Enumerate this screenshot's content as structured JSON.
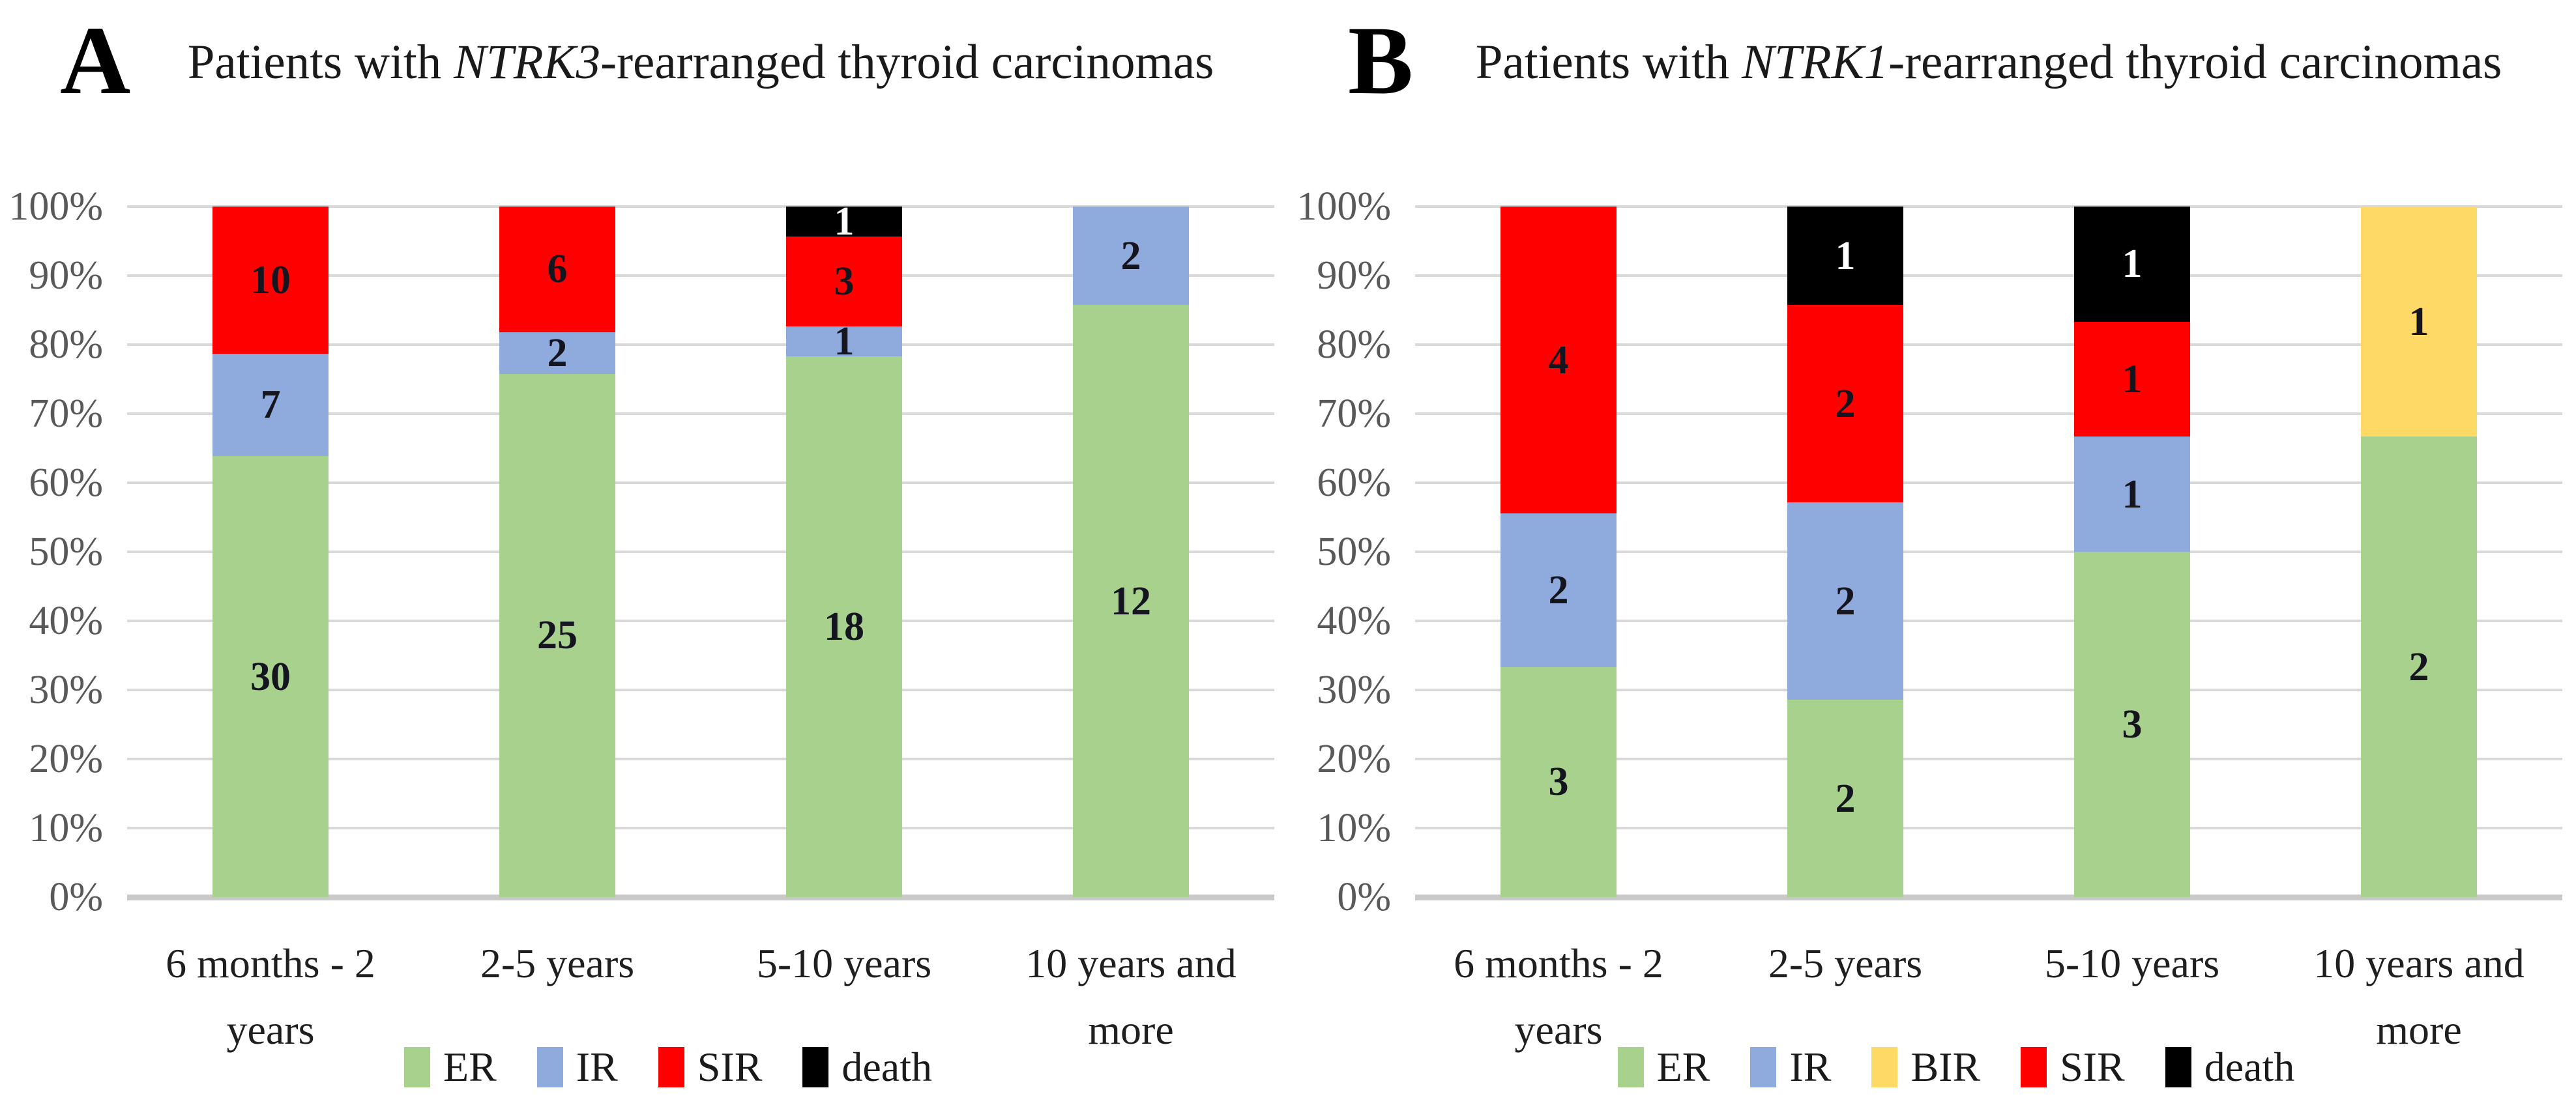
{
  "figure": {
    "panels": [
      {
        "letter": "A"
      },
      {
        "letter": "B"
      }
    ]
  },
  "colors": {
    "ER": "#a9d18e",
    "IR": "#8faadc",
    "BIR": "#ffd966",
    "SIR": "#ff0000",
    "death": "#000000",
    "gridline": "#d9d9d9",
    "axis_baseline": "#c9c9c9",
    "y_tick_label": "#595959",
    "category_label": "#1f1f1f",
    "data_label": "#15151f",
    "data_label_on_dark": "#ffffff"
  },
  "chart_data": [
    {
      "type": "bar",
      "stacked": true,
      "percent_stacked": true,
      "title": "Patients with NTRK3-rearranged thyroid carcinomas",
      "title_parts": [
        {
          "text": "Patients with ",
          "italic": false
        },
        {
          "text": "NTRK3",
          "italic": true
        },
        {
          "text": "-rearranged thyroid carcinomas",
          "italic": false
        }
      ],
      "categories": [
        "6 months - 2 years",
        "2-5 years",
        "5-10 years",
        "10 years and more"
      ],
      "series": [
        {
          "name": "ER",
          "color": "#a9d18e",
          "values": [
            30,
            25,
            18,
            12
          ]
        },
        {
          "name": "IR",
          "color": "#8faadc",
          "values": [
            7,
            2,
            1,
            2
          ]
        },
        {
          "name": "SIR",
          "color": "#ff0000",
          "values": [
            10,
            6,
            3,
            0
          ]
        },
        {
          "name": "death",
          "color": "#000000",
          "values": [
            0,
            0,
            1,
            0
          ]
        }
      ],
      "xlabel": "",
      "ylabel": "",
      "ylim": [
        0,
        100
      ],
      "y_ticks": [
        "0%",
        "10%",
        "20%",
        "30%",
        "40%",
        "50%",
        "60%",
        "70%",
        "80%",
        "90%",
        "100%"
      ],
      "grid": true,
      "legend_position": "bottom",
      "legend": [
        "ER",
        "IR",
        "SIR",
        "death"
      ]
    },
    {
      "type": "bar",
      "stacked": true,
      "percent_stacked": true,
      "title": "Patients with NTRK1-rearranged thyroid carcinomas",
      "title_parts": [
        {
          "text": "Patients with ",
          "italic": false
        },
        {
          "text": "NTRK1",
          "italic": true
        },
        {
          "text": "-rearranged thyroid carcinomas",
          "italic": false
        }
      ],
      "categories": [
        "6 months - 2 years",
        "2-5 years",
        "5-10 years",
        "10 years and more"
      ],
      "series": [
        {
          "name": "ER",
          "color": "#a9d18e",
          "values": [
            3,
            2,
            3,
            2
          ]
        },
        {
          "name": "IR",
          "color": "#8faadc",
          "values": [
            2,
            2,
            1,
            0
          ]
        },
        {
          "name": "BIR",
          "color": "#ffd966",
          "values": [
            0,
            0,
            0,
            1
          ]
        },
        {
          "name": "SIR",
          "color": "#ff0000",
          "values": [
            4,
            2,
            1,
            0
          ]
        },
        {
          "name": "death",
          "color": "#000000",
          "values": [
            0,
            1,
            1,
            0
          ]
        }
      ],
      "xlabel": "",
      "ylabel": "",
      "ylim": [
        0,
        100
      ],
      "y_ticks": [
        "0%",
        "10%",
        "20%",
        "30%",
        "40%",
        "50%",
        "60%",
        "70%",
        "80%",
        "90%",
        "100%"
      ],
      "grid": true,
      "legend_position": "bottom",
      "legend": [
        "ER",
        "IR",
        "BIR",
        "SIR",
        "death"
      ]
    }
  ]
}
